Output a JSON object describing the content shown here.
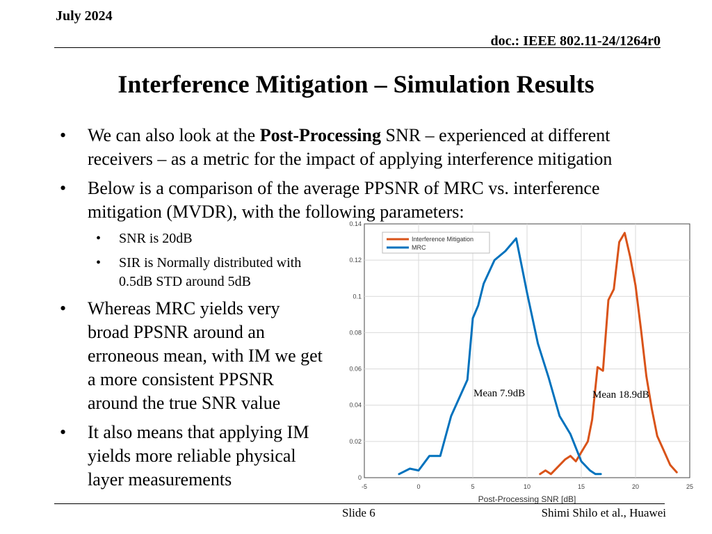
{
  "header": {
    "date": "July 2024",
    "doc": "doc.: IEEE 802.11-24/1264r0"
  },
  "title": "Interference Mitigation – Simulation Results",
  "bullet1": {
    "pre": "We can also look at the ",
    "bold": "Post-Processing",
    "post": " SNR – experienced at different receivers – as a metric for the impact of applying interference mitigation"
  },
  "bullet2": "Below is a comparison of the average PPSNR of MRC vs. interference mitigation (MVDR), with the following parameters:",
  "sub1": "SNR is 20dB",
  "sub2": "SIR is Normally distributed with 0.5dB STD around 5dB",
  "bullet3": "Whereas MRC yields very broad PPSNR around an erroneous mean, with IM we get a more consistent PPSNR around the true SNR value",
  "bullet4": "It also means that applying IM yields more reliable physical layer measurements",
  "footer": {
    "slide": "Slide 6",
    "authors": "Shimi Shilo et al., Huawei"
  },
  "chart_data": {
    "type": "line",
    "xlabel": "Post-Processing SNR [dB]",
    "ylabel": "",
    "xlim": [
      -5,
      25
    ],
    "ylim": [
      0,
      0.14
    ],
    "xticks": [
      -5,
      0,
      5,
      10,
      15,
      20,
      25
    ],
    "xtick_labels": [
      "-5",
      "0",
      "5",
      "10",
      "15",
      "20",
      "25"
    ],
    "yticks": [
      0,
      0.02,
      0.04,
      0.06,
      0.08,
      0.1,
      0.12,
      0.14
    ],
    "ytick_labels": [
      "0",
      "0.02",
      "0.04",
      "0.06",
      "0.08",
      "0.1",
      "0.12",
      "0.14"
    ],
    "grid": true,
    "legend_position": "top-left",
    "series": [
      {
        "name": "Interference Mitigation",
        "color": "#d95319",
        "x": [
          11.2,
          11.7,
          12.2,
          13.5,
          14.0,
          14.5,
          15.0,
          15.6,
          16.0,
          16.5,
          17.0,
          17.5,
          18.0,
          18.5,
          19.0,
          19.5,
          20.0,
          20.5,
          21.0,
          21.5,
          22.0,
          22.6,
          23.2,
          23.8
        ],
        "y": [
          0.002,
          0.004,
          0.002,
          0.01,
          0.012,
          0.009,
          0.014,
          0.02,
          0.032,
          0.061,
          0.059,
          0.098,
          0.104,
          0.13,
          0.135,
          0.122,
          0.106,
          0.082,
          0.056,
          0.038,
          0.023,
          0.015,
          0.007,
          0.003
        ]
      },
      {
        "name": "MRC",
        "color": "#0072bd",
        "x": [
          -1.8,
          -0.8,
          0.0,
          1.0,
          2.0,
          3.0,
          4.5,
          5.0,
          5.5,
          6.0,
          7.0,
          8.0,
          9.0,
          10.0,
          11.0,
          12.0,
          13.0,
          14.0,
          15.0,
          15.8,
          16.3,
          16.8
        ],
        "y": [
          0.002,
          0.005,
          0.004,
          0.012,
          0.012,
          0.034,
          0.054,
          0.088,
          0.095,
          0.107,
          0.12,
          0.125,
          0.132,
          0.102,
          0.074,
          0.055,
          0.034,
          0.024,
          0.009,
          0.004,
          0.002,
          0.002
        ]
      }
    ],
    "annotations": [
      "Mean 7.9dB",
      "Mean 18.9dB"
    ]
  }
}
